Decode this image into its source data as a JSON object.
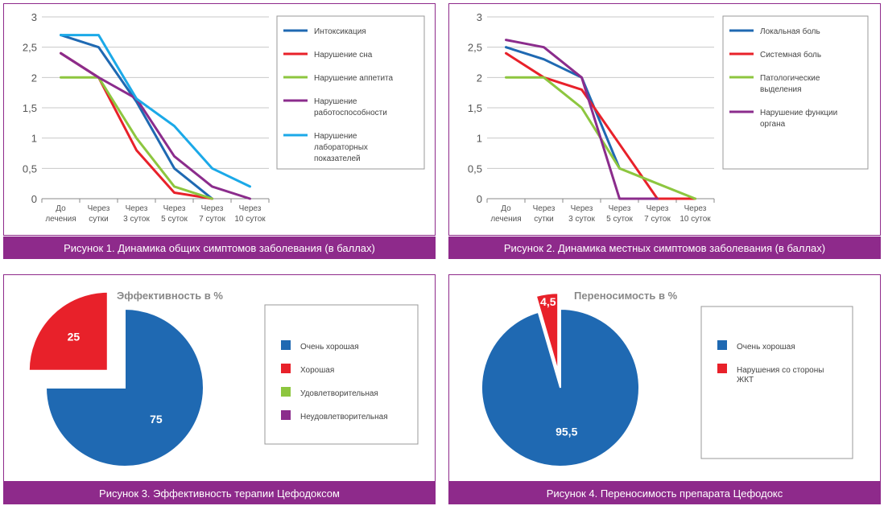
{
  "colors": {
    "frame": "#8e2a8b",
    "blue_dark": "#1f69b2",
    "red": "#e8212a",
    "green": "#8dc63f",
    "purple": "#8b2c8c",
    "cyan": "#1ba9e8"
  },
  "captions": {
    "fig1": "Рисунок 1.  Динамика общих симптомов заболевания (в баллах)",
    "fig2": "Рисунок 2.  Динамика местных симптомов заболевания (в баллах)",
    "fig3": "Рисунок 3.  Эффективность терапии Цефодоксом",
    "fig4": "Рисунок 4.  Переносимость препарата Цефодокс"
  },
  "chart_data": [
    {
      "type": "line",
      "title": "",
      "categories": [
        [
          "До",
          "лечения"
        ],
        [
          "Через",
          "сутки"
        ],
        [
          "Через",
          "3 суток"
        ],
        [
          "Через",
          "5 суток"
        ],
        [
          "Через",
          "7 суток"
        ],
        [
          "Через",
          "10 суток"
        ]
      ],
      "ylim": [
        0,
        3
      ],
      "yticks": [
        "0",
        "0,5",
        "1",
        "1,5",
        "2",
        "2,5",
        "3"
      ],
      "grid": true,
      "legend_position": "right",
      "series": [
        {
          "name": [
            "Интоксикация"
          ],
          "color": "#1f69b2",
          "values": [
            2.7,
            2.5,
            1.6,
            0.5,
            0.0,
            null
          ]
        },
        {
          "name": [
            "Нарушение сна"
          ],
          "color": "#e8212a",
          "values": [
            2.4,
            2.0,
            0.8,
            0.1,
            0.0,
            null
          ]
        },
        {
          "name": [
            "Нарушение аппетита"
          ],
          "color": "#8dc63f",
          "values": [
            2.0,
            2.0,
            1.0,
            0.2,
            0.0,
            null
          ]
        },
        {
          "name": [
            "Нарушение",
            "работоспособности"
          ],
          "color": "#8b2c8c",
          "values": [
            2.4,
            2.0,
            1.65,
            0.7,
            0.2,
            0.0
          ]
        },
        {
          "name": [
            "Нарушение",
            "лабораторных",
            "показателей"
          ],
          "color": "#1ba9e8",
          "values": [
            2.7,
            2.7,
            1.65,
            1.2,
            0.5,
            0.2
          ]
        }
      ]
    },
    {
      "type": "line",
      "title": "",
      "categories": [
        [
          "До",
          "лечения"
        ],
        [
          "Через",
          "сутки"
        ],
        [
          "Через",
          "3 суток"
        ],
        [
          "Через",
          "5 суток"
        ],
        [
          "Через",
          "7 суток"
        ],
        [
          "Через",
          "10 суток"
        ]
      ],
      "ylim": [
        0,
        3
      ],
      "yticks": [
        "0",
        "0,5",
        "1",
        "1,5",
        "2",
        "2,5",
        "3"
      ],
      "grid": true,
      "legend_position": "right",
      "series": [
        {
          "name": [
            "Локальная боль"
          ],
          "color": "#1f69b2",
          "values": [
            2.5,
            2.3,
            2.0,
            0.5,
            null,
            null
          ]
        },
        {
          "name": [
            "Системная боль"
          ],
          "color": "#e8212a",
          "values": [
            2.4,
            2.0,
            1.8,
            0.9,
            0.0,
            0.0
          ]
        },
        {
          "name": [
            "Патологические",
            "выделения"
          ],
          "color": "#8dc63f",
          "values": [
            2.0,
            2.0,
            1.5,
            0.5,
            0.25,
            0.0
          ]
        },
        {
          "name": [
            "Нарушение функции",
            "органа"
          ],
          "color": "#8b2c8c",
          "values": [
            2.62,
            2.5,
            2.0,
            0.0,
            0.0,
            null
          ]
        }
      ]
    },
    {
      "type": "pie",
      "title": "Эффективность в %",
      "legend_position": "right",
      "slices": [
        {
          "name": "Очень хорошая",
          "value": 75,
          "label": "75",
          "color": "#1f69b2",
          "exploded": false
        },
        {
          "name": "Хорошая",
          "value": 25,
          "label": "25",
          "color": "#e8212a",
          "exploded": true
        },
        {
          "name": "Удовлетворительная",
          "value": 0,
          "label": "",
          "color": "#8dc63f",
          "exploded": false
        },
        {
          "name": "Неудовлетворительная",
          "value": 0,
          "label": "",
          "color": "#8b2c8c",
          "exploded": false
        }
      ]
    },
    {
      "type": "pie",
      "title": "Переносимость в %",
      "legend_position": "right",
      "slices": [
        {
          "name": "Очень хорошая",
          "value": 95.5,
          "label": "95,5",
          "color": "#1f69b2",
          "exploded": false
        },
        {
          "name": "Нарушения со стороны ЖКТ",
          "value": 4.5,
          "label": "4,5",
          "color": "#e8212a",
          "exploded": true
        }
      ]
    }
  ]
}
